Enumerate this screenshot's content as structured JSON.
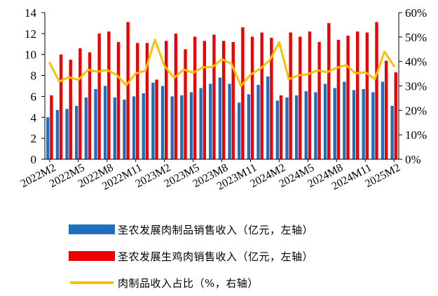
{
  "chart_data": {
    "type": "bar",
    "categories": [
      "2022M2",
      "2022M3",
      "2022M4",
      "2022M5",
      "2022M6",
      "2022M7",
      "2022M8",
      "2022M9",
      "2022M10",
      "2022M11",
      "2022M12",
      "2023M1",
      "2023M2",
      "2023M3",
      "2023M4",
      "2023M5",
      "2023M6",
      "2023M7",
      "2023M8",
      "2023M9",
      "2023M10",
      "2023M11",
      "2023M12",
      "2024M1",
      "2024M2",
      "2024M3",
      "2024M4",
      "2024M5",
      "2024M6",
      "2024M7",
      "2024M8",
      "2024M9",
      "2024M10",
      "2024M11",
      "2024M12",
      "2025M1",
      "2025M2"
    ],
    "x_tick_labels": [
      "2022M2",
      "2022M5",
      "2022M8",
      "2022M11",
      "2023M2",
      "2023M5",
      "2023M8",
      "2023M11",
      "2024M2",
      "2024M5",
      "2024M8",
      "2024M11",
      "2025M2"
    ],
    "series": [
      {
        "name": "圣农发展肉制品销售收入（亿元，左轴）",
        "type": "bar",
        "axis": "left",
        "color": "#1f6fbf",
        "values": [
          4.0,
          4.7,
          4.8,
          5.1,
          5.9,
          6.7,
          7.0,
          5.9,
          5.7,
          6.0,
          6.3,
          7.3,
          7.0,
          6.0,
          6.1,
          6.4,
          6.8,
          7.2,
          7.8,
          7.2,
          5.4,
          6.2,
          7.1,
          7.9,
          5.6,
          5.9,
          6.1,
          6.5,
          6.4,
          7.2,
          6.8,
          7.4,
          6.6,
          6.7,
          6.4,
          7.4,
          5.1
        ]
      },
      {
        "name": "圣农发展生鸡肉销售收入（亿元，左轴）",
        "type": "bar",
        "axis": "left",
        "color": "#ee0000",
        "values": [
          6.1,
          10.0,
          9.5,
          10.6,
          10.2,
          12.0,
          12.2,
          11.2,
          13.1,
          11.1,
          11.1,
          7.6,
          11.3,
          12.0,
          10.5,
          11.7,
          11.3,
          11.9,
          11.3,
          11.2,
          12.6,
          11.7,
          12.1,
          11.6,
          6.1,
          12.1,
          11.7,
          12.2,
          11.2,
          13.0,
          11.4,
          11.8,
          12.2,
          12.1,
          13.1,
          9.4,
          8.3
        ]
      },
      {
        "name": "肉制品收入占比（%，右轴）",
        "type": "line",
        "axis": "right",
        "color": "#ffc000",
        "values": [
          39.5,
          31.8,
          33.6,
          32.5,
          36.6,
          35.8,
          36.5,
          34.5,
          30.3,
          35.1,
          36.2,
          48.9,
          38.2,
          33.3,
          36.7,
          35.4,
          37.6,
          37.7,
          40.9,
          39.1,
          30.0,
          34.6,
          37.0,
          40.5,
          47.8,
          32.8,
          34.3,
          34.8,
          36.4,
          35.6,
          37.4,
          38.5,
          35.1,
          35.6,
          32.8,
          44.0,
          38.1
        ]
      }
    ],
    "y_left": {
      "min": 0,
      "max": 14,
      "ticks": [
        "0",
        "2",
        "4",
        "6",
        "8",
        "10",
        "12",
        "14"
      ]
    },
    "y_right": {
      "min": 0,
      "max": 60,
      "ticks": [
        "0%",
        "10%",
        "20%",
        "30%",
        "40%",
        "50%",
        "60%"
      ]
    },
    "grid": false,
    "legend_position": "bottom"
  }
}
